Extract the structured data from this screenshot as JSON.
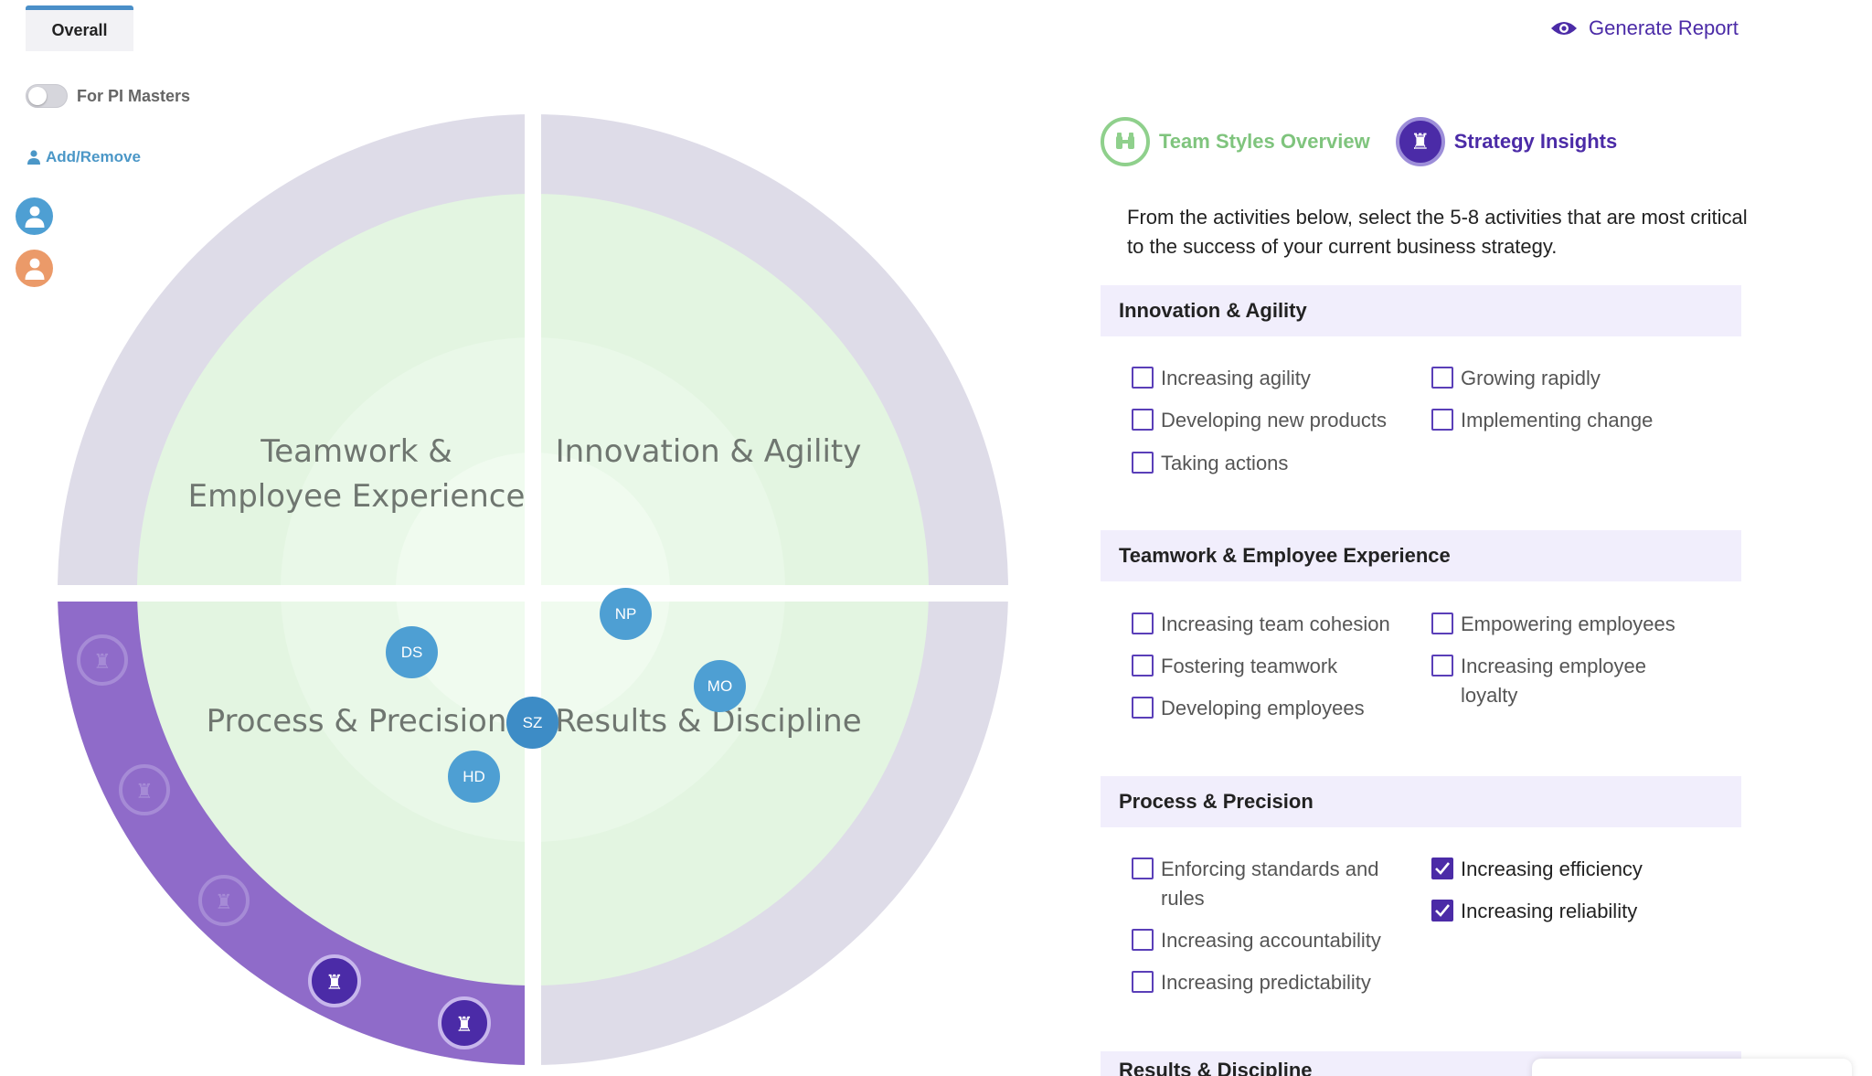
{
  "tab": {
    "label": "Overall"
  },
  "toggle": {
    "label": "For PI Masters",
    "on": false
  },
  "add_remove": {
    "label": "Add/Remove"
  },
  "avatars": [
    {
      "icon": "person-icon",
      "color": "#4e9fd3"
    },
    {
      "icon": "person-icon",
      "color": "#eb9a69"
    }
  ],
  "chart": {
    "quadrants": [
      {
        "line1": "Teamwork &",
        "line2": "Employee Experience"
      },
      {
        "line1": "Innovation & Agility",
        "line2": ""
      },
      {
        "line1": "Process & Precision",
        "line2": ""
      },
      {
        "line1": "Results & Discipline",
        "line2": ""
      }
    ],
    "nodes": [
      "NP",
      "DS",
      "MO",
      "SZ",
      "HD"
    ],
    "selected_quadrant": "Process & Precision",
    "colors": {
      "outer_ring": "#dedce8",
      "highlight": "#8f6bc9",
      "inner": "#e4f5e3",
      "node": "#4e9fd3"
    }
  },
  "header": {
    "generate_report": "Generate Report"
  },
  "view_tabs": [
    {
      "label": "Team Styles Overview",
      "icon": "binoculars-icon"
    },
    {
      "label": "Strategy Insights",
      "icon": "chess-rook-icon"
    }
  ],
  "intro": "From the activities below, select the 5-8 activities that are most critical to the success of your current business strategy.",
  "sections": [
    {
      "title": "Innovation & Agility",
      "options": [
        {
          "label": "Increasing agility",
          "checked": false
        },
        {
          "label": "Growing rapidly",
          "checked": false
        },
        {
          "label": "Developing new products",
          "checked": false
        },
        {
          "label": "Implementing change",
          "checked": false
        },
        {
          "label": "Taking actions",
          "checked": false
        }
      ]
    },
    {
      "title": "Teamwork & Employee Experience",
      "options": [
        {
          "label": "Increasing team cohesion",
          "checked": false
        },
        {
          "label": "Empowering employees",
          "checked": false
        },
        {
          "label": "Fostering teamwork",
          "checked": false
        },
        {
          "label": "Increasing employee loyalty",
          "checked": false
        },
        {
          "label": "Developing employees",
          "checked": false
        }
      ]
    },
    {
      "title": "Process & Precision",
      "options": [
        {
          "label": "Enforcing standards and rules",
          "checked": false
        },
        {
          "label": "Increasing efficiency",
          "checked": true
        },
        {
          "label": "Increasing accountability",
          "checked": false
        },
        {
          "label": "Increasing reliability",
          "checked": true
        },
        {
          "label": "Increasing predictability",
          "checked": false
        }
      ]
    },
    {
      "title": "Results & Discipline",
      "options": []
    }
  ]
}
